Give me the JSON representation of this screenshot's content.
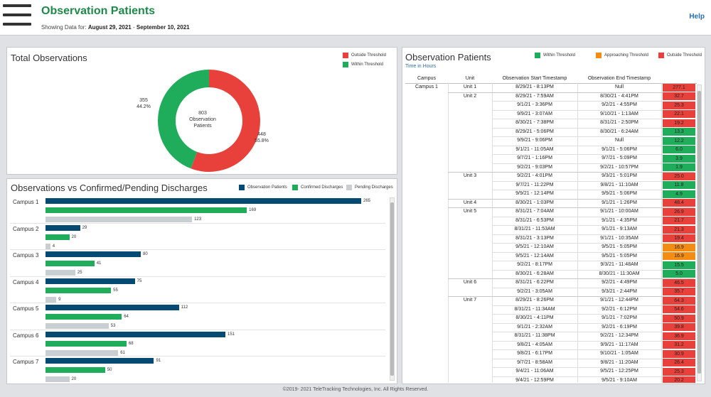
{
  "header": {
    "title": "Observation Patients",
    "date_prefix": "Showing Data for:",
    "date_start": "August 29, 2021",
    "date_sep": "-",
    "date_end": "September 10, 2021",
    "help": "Help"
  },
  "total": {
    "title": "Total Observations",
    "legend": [
      {
        "label": "Outside Threshold",
        "color": "#e8413b"
      },
      {
        "label": "Within Threshold",
        "color": "#1fad5c"
      }
    ],
    "center_value": "803",
    "center_line1": "Observation",
    "center_line2": "Patients",
    "within_count": "355",
    "within_pct": "44.2%",
    "outside_count": "448",
    "outside_pct": "55.8%"
  },
  "chart_data": {
    "type": "bar",
    "title": "Observations vs Confirmed/Pending Discharges",
    "categories": [
      "Campus 1",
      "Campus 2",
      "Campus 3",
      "Campus 4",
      "Campus 5",
      "Campus 6",
      "Campus 7"
    ],
    "series": [
      {
        "name": "Observation Patients",
        "color": "#044a73",
        "values": [
          265,
          29,
          80,
          75,
          112,
          151,
          91
        ]
      },
      {
        "name": "Confirmed Discharges",
        "color": "#1fad5c",
        "values": [
          169,
          20,
          41,
          55,
          64,
          68,
          50
        ]
      },
      {
        "name": "Pending Discharges",
        "color": "#c9ced3",
        "values": [
          123,
          4,
          25,
          9,
          53,
          61,
          20
        ]
      }
    ],
    "xlim": [
      0,
      280
    ],
    "legend_position": "top-right"
  },
  "obs": {
    "title": "Observation Patients",
    "subtitle": "Time in Hours",
    "legend": [
      {
        "label": "Within Threshold",
        "color": "#1fad5c"
      },
      {
        "label": "Approaching Threshold",
        "color": "#f28c12"
      },
      {
        "label": "Outside Threshold",
        "color": "#e8413b"
      }
    ],
    "headers": {
      "campus": "Campus",
      "unit": "Unit",
      "start": "Observation Start Timestamp",
      "end": "Observation End Timestamp"
    },
    "campus": "Campus 1",
    "rows": [
      {
        "unit": "Unit 1",
        "start": "8/29/21 - 8:13PM",
        "end": "Null",
        "hours": "277.1",
        "status": "outside"
      },
      {
        "unit": "Unit 2",
        "start": "8/29/21 - 7:59AM",
        "end": "8/30/21 - 4:41PM",
        "hours": "32.7",
        "status": "outside"
      },
      {
        "unit": "",
        "start": "9/1/21 - 3:36PM",
        "end": "9/2/21 - 4:55PM",
        "hours": "25.3",
        "status": "outside"
      },
      {
        "unit": "",
        "start": "9/9/21 - 3:07AM",
        "end": "9/10/21 - 1:13AM",
        "hours": "22.1",
        "status": "outside"
      },
      {
        "unit": "",
        "start": "8/30/21 - 7:38PM",
        "end": "8/31/21 - 2:50PM",
        "hours": "19.2",
        "status": "outside"
      },
      {
        "unit": "",
        "start": "8/29/21 - 5:06PM",
        "end": "8/30/21 - 6:24AM",
        "hours": "13.3",
        "status": "within"
      },
      {
        "unit": "",
        "start": "9/9/21 - 9:06PM",
        "end": "Null",
        "hours": "12.2",
        "status": "within"
      },
      {
        "unit": "",
        "start": "9/1/21 - 11:05AM",
        "end": "9/1/21 - 5:06PM",
        "hours": "6.0",
        "status": "within"
      },
      {
        "unit": "",
        "start": "9/7/21 - 1:16PM",
        "end": "9/7/21 - 5:09PM",
        "hours": "3.9",
        "status": "within"
      },
      {
        "unit": "",
        "start": "9/2/21 - 9:03PM",
        "end": "9/2/21 - 10:57PM",
        "hours": "1.9",
        "status": "within"
      },
      {
        "unit": "Unit 3",
        "start": "9/2/21 - 4:01PM",
        "end": "9/3/21 - 5:01PM",
        "hours": "25.0",
        "status": "outside"
      },
      {
        "unit": "",
        "start": "9/7/21 - 11:22PM",
        "end": "9/8/21 - 11:10AM",
        "hours": "11.8",
        "status": "within"
      },
      {
        "unit": "",
        "start": "9/9/21 - 12:14PM",
        "end": "9/9/21 - 5:06PM",
        "hours": "4.9",
        "status": "within"
      },
      {
        "unit": "Unit 4",
        "start": "8/30/21 - 1:03PM",
        "end": "9/1/21 - 1:26PM",
        "hours": "48.4",
        "status": "outside"
      },
      {
        "unit": "Unit 5",
        "start": "8/31/21 - 7:04AM",
        "end": "9/1/21 - 10:00AM",
        "hours": "26.9",
        "status": "outside"
      },
      {
        "unit": "",
        "start": "8/31/21 - 6:53PM",
        "end": "9/1/21 - 4:35PM",
        "hours": "21.7",
        "status": "outside"
      },
      {
        "unit": "",
        "start": "8/31/21 - 11:53AM",
        "end": "9/1/21 - 9:13AM",
        "hours": "21.3",
        "status": "outside"
      },
      {
        "unit": "",
        "start": "8/31/21 - 3:13PM",
        "end": "9/1/21 - 10:35AM",
        "hours": "19.4",
        "status": "outside"
      },
      {
        "unit": "",
        "start": "9/5/21 - 12:10AM",
        "end": "9/5/21 - 5:05PM",
        "hours": "16.9",
        "status": "approaching"
      },
      {
        "unit": "",
        "start": "9/5/21 - 12:14AM",
        "end": "9/5/21 - 5:05PM",
        "hours": "16.9",
        "status": "approaching"
      },
      {
        "unit": "",
        "start": "9/2/21 - 8:17PM",
        "end": "9/3/21 - 11:48AM",
        "hours": "15.5",
        "status": "within"
      },
      {
        "unit": "",
        "start": "8/30/21 - 6:28AM",
        "end": "8/30/21 - 11:30AM",
        "hours": "5.0",
        "status": "within"
      },
      {
        "unit": "Unit 6",
        "start": "8/31/21 - 6:22PM",
        "end": "9/2/21 - 4:49PM",
        "hours": "46.5",
        "status": "outside"
      },
      {
        "unit": "",
        "start": "9/2/21 - 3:05AM",
        "end": "9/3/21 - 2:44PM",
        "hours": "35.7",
        "status": "outside"
      },
      {
        "unit": "Unit 7",
        "start": "8/29/21 - 8:26PM",
        "end": "9/1/21 - 12:44PM",
        "hours": "64.3",
        "status": "outside"
      },
      {
        "unit": "",
        "start": "8/31/21 - 11:34AM",
        "end": "9/2/21 - 6:12PM",
        "hours": "54.6",
        "status": "outside"
      },
      {
        "unit": "",
        "start": "8/30/21 - 4:11PM",
        "end": "9/1/21 - 7:02PM",
        "hours": "50.9",
        "status": "outside"
      },
      {
        "unit": "",
        "start": "9/1/21 - 2:32AM",
        "end": "9/2/21 - 6:19PM",
        "hours": "39.8",
        "status": "outside"
      },
      {
        "unit": "",
        "start": "8/31/21 - 11:38PM",
        "end": "9/2/21 - 12:34PM",
        "hours": "36.9",
        "status": "outside"
      },
      {
        "unit": "",
        "start": "9/8/21 - 4:05AM",
        "end": "9/9/21 - 11:17AM",
        "hours": "31.2",
        "status": "outside"
      },
      {
        "unit": "",
        "start": "9/8/21 - 6:17PM",
        "end": "9/10/21 - 1:05AM",
        "hours": "30.9",
        "status": "outside"
      },
      {
        "unit": "",
        "start": "9/7/21 - 8:58AM",
        "end": "9/8/21 - 11:20AM",
        "hours": "26.4",
        "status": "outside"
      },
      {
        "unit": "",
        "start": "9/4/21 - 11:06AM",
        "end": "9/5/21 - 12:25PM",
        "hours": "25.3",
        "status": "outside"
      },
      {
        "unit": "",
        "start": "9/4/21 - 12:59PM",
        "end": "9/5/21 - 9:10AM",
        "hours": "20.2",
        "status": "outside"
      }
    ],
    "status_colors": {
      "within": "#1fad5c",
      "approaching": "#f28c12",
      "outside": "#e8413b"
    }
  },
  "footer": "©2019- 2021 TeleTracking Technologies, Inc. All Rights Reserved."
}
